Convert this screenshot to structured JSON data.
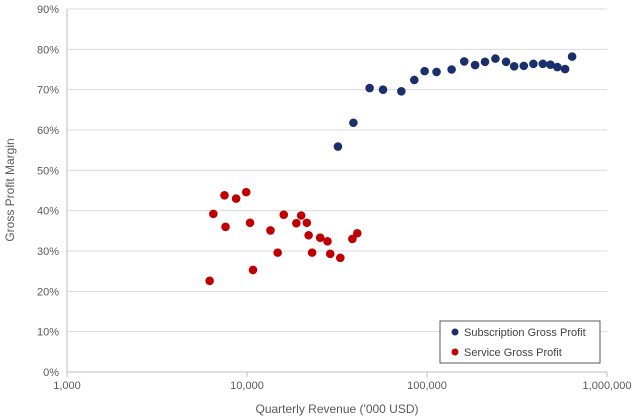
{
  "chart_data": {
    "type": "scatter",
    "title": "",
    "xlabel": "Quarterly Revenue ('000 USD)",
    "ylabel": "Gross Profit Margin",
    "xscale": "log",
    "xlim": [
      1000,
      1000000
    ],
    "ylim": [
      0,
      90
    ],
    "x_ticks": [
      1000,
      10000,
      100000,
      1000000
    ],
    "x_tick_labels": [
      "1,000",
      "10,000",
      "100,000",
      "1,000,000"
    ],
    "y_ticks": [
      0,
      10,
      20,
      30,
      40,
      50,
      60,
      70,
      80,
      90
    ],
    "y_tick_labels": [
      "0%",
      "10%",
      "20%",
      "30%",
      "40%",
      "50%",
      "60%",
      "70%",
      "80%",
      "90%"
    ],
    "grid": "horizontal",
    "legend_position": "bottom-right",
    "series": [
      {
        "name": "Subscription Gross Profit",
        "color": "#1a2f6b",
        "points": [
          [
            32000,
            55.9
          ],
          [
            39000,
            61.8
          ],
          [
            48000,
            70.4
          ],
          [
            57000,
            70.0
          ],
          [
            72000,
            69.6
          ],
          [
            85000,
            72.4
          ],
          [
            97000,
            74.6
          ],
          [
            113000,
            74.4
          ],
          [
            137000,
            75.0
          ],
          [
            161000,
            77.0
          ],
          [
            185000,
            76.1
          ],
          [
            210000,
            76.9
          ],
          [
            240000,
            77.7
          ],
          [
            275000,
            76.9
          ],
          [
            305000,
            75.8
          ],
          [
            345000,
            75.9
          ],
          [
            390000,
            76.4
          ],
          [
            440000,
            76.4
          ],
          [
            485000,
            76.2
          ],
          [
            530000,
            75.6
          ],
          [
            585000,
            75.1
          ],
          [
            640000,
            78.2
          ]
        ]
      },
      {
        "name": "Service Gross Profit",
        "color": "#c00000",
        "points": [
          [
            6200,
            22.6
          ],
          [
            6500,
            39.2
          ],
          [
            7500,
            43.8
          ],
          [
            7600,
            36.0
          ],
          [
            8700,
            43.0
          ],
          [
            9900,
            44.6
          ],
          [
            10400,
            37.0
          ],
          [
            10800,
            25.3
          ],
          [
            13500,
            35.1
          ],
          [
            14800,
            29.6
          ],
          [
            16000,
            39.0
          ],
          [
            18800,
            36.9
          ],
          [
            20000,
            38.8
          ],
          [
            21500,
            37.0
          ],
          [
            22000,
            33.9
          ],
          [
            23000,
            29.6
          ],
          [
            25500,
            33.3
          ],
          [
            28000,
            32.4
          ],
          [
            29000,
            29.3
          ],
          [
            33000,
            28.3
          ],
          [
            38500,
            33.0
          ],
          [
            41000,
            34.4
          ]
        ]
      }
    ]
  }
}
